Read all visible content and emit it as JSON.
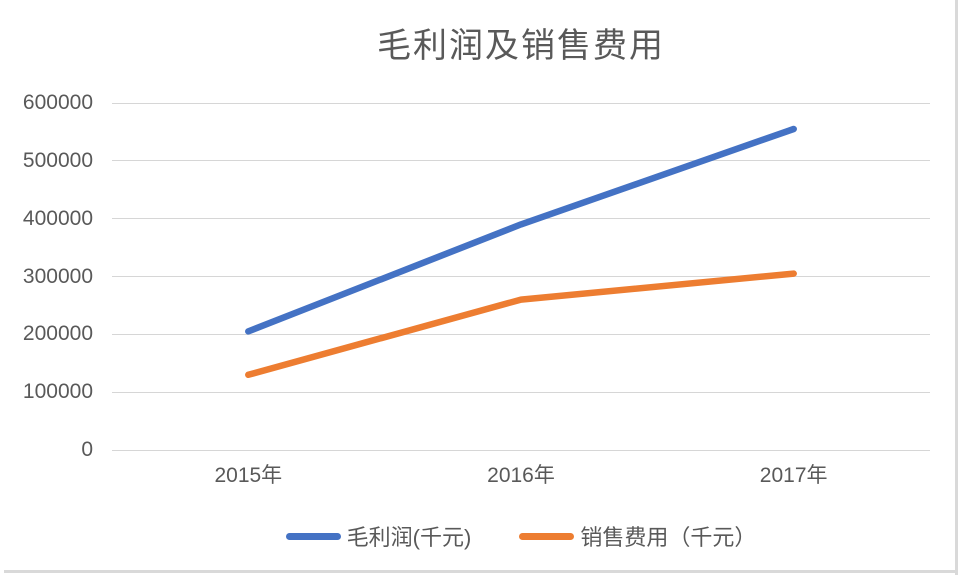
{
  "title": "毛利润及销售费用",
  "colors": {
    "series1": "#4472C4",
    "series2": "#ED7D31",
    "gridline": "#d6d6d6",
    "axis_text": "#595959",
    "title_text": "#595959",
    "page_edge": "#d9d9d9"
  },
  "chart_data": {
    "type": "line",
    "title": "毛利润及销售费用",
    "categories": [
      "2015年",
      "2016年",
      "2017年"
    ],
    "series": [
      {
        "name": "毛利润(千元)",
        "color": "#4472C4",
        "values": [
          205000,
          390000,
          555000
        ]
      },
      {
        "name": "销售费用（千元）",
        "color": "#ED7D31",
        "values": [
          130000,
          260000,
          305000
        ]
      }
    ],
    "xlabel": "",
    "ylabel": "",
    "ylim": [
      0,
      600000
    ],
    "yticks": [
      600000,
      500000,
      400000,
      300000,
      200000,
      100000,
      0
    ],
    "ytick_labels": [
      "600000",
      "500000",
      "400000",
      "300000",
      "200000",
      "100000",
      "0"
    ],
    "grid": true,
    "legend_position": "bottom"
  },
  "legend": {
    "items": [
      {
        "label": "毛利润(千元)",
        "color": "#4472C4"
      },
      {
        "label": "销售费用（千元）",
        "color": "#ED7D31"
      }
    ]
  }
}
